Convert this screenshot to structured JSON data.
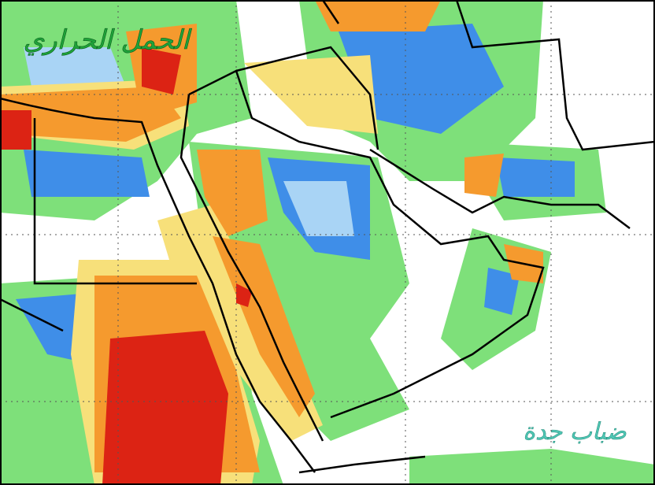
{
  "map": {
    "caption_top": "الحمل الحراري",
    "caption_bottom": "ضباب جدة"
  }
}
